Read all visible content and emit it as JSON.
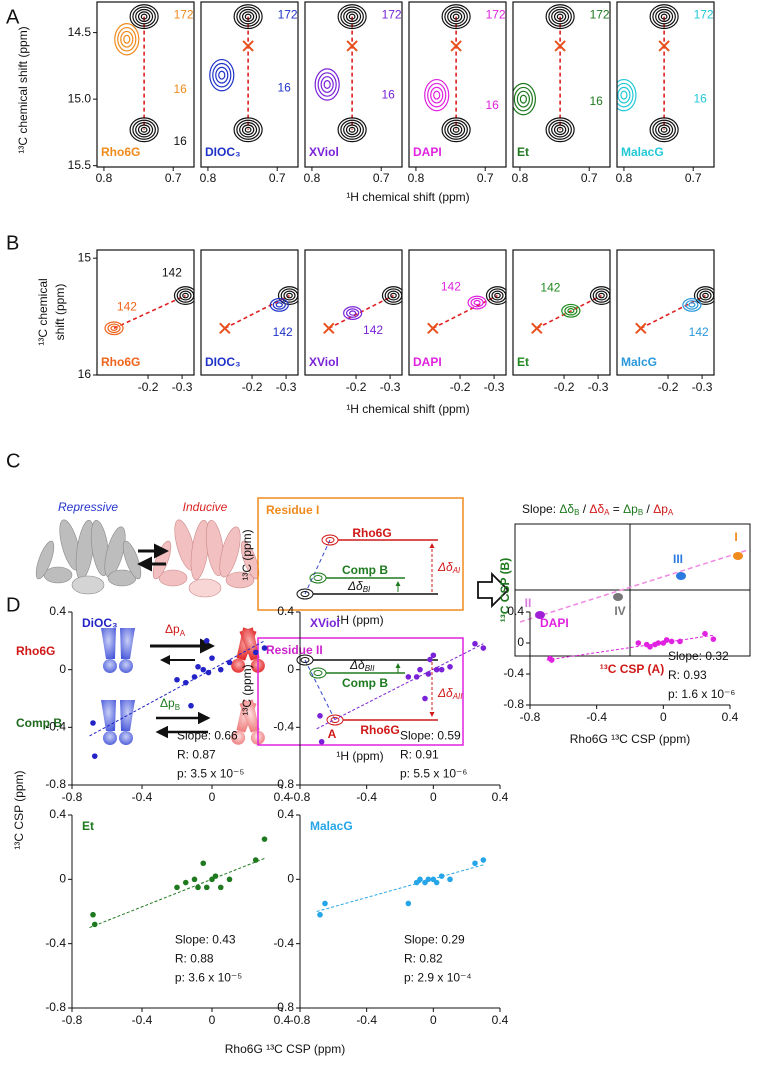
{
  "panel_labels": [
    "A",
    "B",
    "C",
    "D"
  ],
  "panel_a": {
    "xlabel": "¹H chemical shift (ppm)",
    "ylabel": "¹³C chemical shift (ppm)",
    "xlim": [
      0.81,
      0.67
    ],
    "ylim": [
      14.27,
      15.51
    ],
    "xticks": [
      0.8,
      0.7
    ],
    "yticks": [
      14.5,
      {
        "value": 15,
        "label": "15.0"
      },
      15.5
    ],
    "reference_peaks": [
      {
        "x": 0.742,
        "y": 14.38
      },
      {
        "x": 0.742,
        "y": 15.23
      }
    ],
    "reference_label": {
      "text": "16",
      "x": 0.69,
      "y": 15.32
    },
    "subplots": [
      {
        "name": "Rho6G",
        "color": "#f08a1c",
        "peak": {
          "x": 0.767,
          "y": 14.55
        },
        "labels": [
          {
            "text": "172",
            "x": 0.685,
            "y": 14.37
          },
          {
            "text": "16",
            "x": 0.69,
            "y": 14.93
          }
        ]
      },
      {
        "name": "DIOC₃",
        "color": "#1f32c8",
        "cross": {
          "x": 0.742,
          "y": 14.6
        },
        "peak": {
          "x": 0.78,
          "y": 14.82
        },
        "labels": [
          {
            "text": "172",
            "x": 0.685,
            "y": 14.37
          },
          {
            "text": "16",
            "x": 0.69,
            "y": 14.92
          }
        ]
      },
      {
        "name": "XViol",
        "color": "#7a22d8",
        "cross": {
          "x": 0.742,
          "y": 14.6
        },
        "peak": {
          "x": 0.778,
          "y": 14.89
        },
        "labels": [
          {
            "text": "172",
            "x": 0.685,
            "y": 14.37
          },
          {
            "text": "16",
            "x": 0.69,
            "y": 14.97
          }
        ]
      },
      {
        "name": "DAPI",
        "color": "#e022e0",
        "cross": {
          "x": 0.742,
          "y": 14.6
        },
        "peak": {
          "x": 0.77,
          "y": 14.97
        },
        "labels": [
          {
            "text": "172",
            "x": 0.685,
            "y": 14.37
          },
          {
            "text": "16",
            "x": 0.69,
            "y": 15.05
          }
        ]
      },
      {
        "name": "Et",
        "color": "#1f7a1f",
        "cross": {
          "x": 0.742,
          "y": 14.6
        },
        "peak": {
          "x": 0.795,
          "y": 15.0
        },
        "labels": [
          {
            "text": "172",
            "x": 0.685,
            "y": 14.37
          },
          {
            "text": "16",
            "x": 0.69,
            "y": 15.02
          }
        ]
      },
      {
        "name": "MalacG",
        "color": "#22c8d8",
        "cross": {
          "x": 0.742,
          "y": 14.6
        },
        "peak": {
          "x": 0.8,
          "y": 14.97
        },
        "labels": [
          {
            "text": "172",
            "x": 0.685,
            "y": 14.37
          },
          {
            "text": "16",
            "x": 0.69,
            "y": 15.0
          }
        ]
      }
    ]
  },
  "panel_b": {
    "xlabel": "¹H chemical shift (ppm)",
    "ylabel": [
      "¹³C chemical",
      "shift (ppm)"
    ],
    "xlim": [
      -0.05,
      -0.335
    ],
    "ylim": [
      14.93,
      16.0
    ],
    "xticks": [
      -0.2,
      -0.3
    ],
    "yticks": [
      15,
      16
    ],
    "reference_peak": {
      "x": -0.31,
      "y": 15.32
    },
    "reference_label": {
      "text": "142",
      "x": -0.27,
      "y": 15.13
    },
    "subplots": [
      {
        "name": "Rho6G",
        "color": "#f0641c",
        "peak": {
          "x": -0.1,
          "y": 15.6
        },
        "label": {
          "text": "142",
          "x": -0.138,
          "y": 15.42
        }
      },
      {
        "name": "DIOC₃",
        "color": "#1f32c8",
        "cross": {
          "x": -0.12,
          "y": 15.6
        },
        "peak": {
          "x": -0.28,
          "y": 15.4
        },
        "label": {
          "text": "142",
          "x": -0.29,
          "y": 15.64
        }
      },
      {
        "name": "XViol",
        "color": "#7a22d8",
        "cross": {
          "x": -0.12,
          "y": 15.6
        },
        "peak": {
          "x": -0.19,
          "y": 15.47
        },
        "label": {
          "text": "142",
          "x": -0.25,
          "y": 15.62
        }
      },
      {
        "name": "DAPI",
        "color": "#e022e0",
        "cross": {
          "x": -0.12,
          "y": 15.6
        },
        "peak": {
          "x": -0.25,
          "y": 15.38
        },
        "label": {
          "text": "142",
          "x": -0.173,
          "y": 15.25
        }
      },
      {
        "name": "Et",
        "color": "#1f8a1f",
        "cross": {
          "x": -0.12,
          "y": 15.6
        },
        "peak": {
          "x": -0.22,
          "y": 15.45
        },
        "label": {
          "text": "142",
          "x": -0.16,
          "y": 15.26
        }
      },
      {
        "name": "MalcG",
        "color": "#2a98dc",
        "cross": {
          "x": -0.12,
          "y": 15.6
        },
        "peak": {
          "x": -0.27,
          "y": 15.4
        },
        "label": {
          "text": "142",
          "x": -0.29,
          "y": 15.64
        }
      }
    ]
  },
  "panel_c": {
    "repressive": "Repressive",
    "inducive": "Inducive",
    "row_labels": [
      "Rho6G",
      "Comp B"
    ],
    "dp_a": {
      "base": "Δp",
      "sub": "A"
    },
    "dp_b": {
      "base": "Δp",
      "sub": "B"
    },
    "residue_1": {
      "title": "Residue I",
      "rho6g": "Rho6G",
      "compb": "Comp B",
      "dd_b": {
        "base": "Δδ",
        "sub": "BI"
      },
      "dd_a": {
        "base": "Δδ",
        "sub": "AI"
      },
      "ylabel": "¹³C (ppm)",
      "xlabel": "¹H (ppm)"
    },
    "residue_2": {
      "title": "Residue II",
      "rho6g": "Rho6G",
      "compb": "Comp B",
      "a": "A",
      "dd_b": {
        "base": "Δδ",
        "sub": "BII"
      },
      "dd_a": {
        "base": "Δδ",
        "sub": "AII"
      },
      "ylabel": "¹³C (ppm)",
      "xlabel": "¹H (ppm)"
    },
    "scatter": {
      "slope": [
        "Slope: ",
        "Δδ",
        "B",
        " / ",
        "Δδ",
        "A",
        " = ",
        "Δp",
        "B",
        " / ",
        "Δp",
        "A"
      ],
      "ylabel": "¹³C CSP (B)",
      "xlabel": "¹³C CSP (A)",
      "points": [
        "I",
        "II",
        "III",
        "IV"
      ]
    }
  },
  "panel_d": {
    "ylabel": "¹³C CSP (ppm)",
    "xlabel": "Rho6G ¹³C CSP (ppm)",
    "xlim": [
      -0.8,
      0.4
    ],
    "ylim": [
      -0.8,
      0.4
    ],
    "xticks": [
      -0.8,
      -0.4,
      0,
      0.4
    ],
    "yticks": [
      -0.8,
      -0.4,
      0,
      0.4
    ],
    "plots": [
      {
        "name": "DiOC₃",
        "color": "#2323c8",
        "x": [
          -0.68,
          -0.67,
          -0.2,
          -0.15,
          -0.1,
          -0.12,
          -0.05,
          -0.03,
          -0.02,
          0.0,
          0.05,
          0.1,
          0.25,
          0.3,
          -0.08
        ],
        "y": [
          -0.37,
          -0.6,
          -0.07,
          -0.09,
          -0.05,
          -0.25,
          0.0,
          0.2,
          -0.02,
          0.08,
          0.0,
          0.05,
          0.12,
          0.15,
          0.02
        ],
        "fit_x": [
          -0.7,
          0.3
        ],
        "fit_y": [
          -0.46,
          0.2
        ],
        "stats": [
          "Slope: 0.66",
          "R: 0.87",
          "p: 3.5 x 10⁻⁵"
        ]
      },
      {
        "name": "XViol",
        "color": "#7a22d8",
        "x": [
          -0.68,
          -0.67,
          -0.15,
          -0.1,
          -0.08,
          -0.05,
          -0.03,
          0.0,
          0.02,
          0.05,
          0.1,
          0.25,
          0.3,
          -0.02
        ],
        "y": [
          -0.32,
          -0.5,
          -0.05,
          -0.05,
          0.0,
          -0.2,
          -0.03,
          0.1,
          0.0,
          0.0,
          0.02,
          0.18,
          0.15,
          0.07
        ],
        "fit_x": [
          -0.7,
          0.3
        ],
        "fit_y": [
          -0.41,
          0.18
        ],
        "stats": [
          "Slope: 0.59",
          "R: 0.91",
          "p: 5.5 x 10⁻⁶"
        ]
      },
      {
        "name": "DAPI",
        "color": "#e022e0",
        "x": [
          -0.68,
          -0.67,
          -0.15,
          -0.1,
          -0.08,
          -0.05,
          -0.03,
          0.0,
          0.05,
          0.1,
          0.25,
          0.3,
          0.02
        ],
        "y": [
          -0.2,
          -0.22,
          0.0,
          -0.02,
          -0.05,
          -0.02,
          0.0,
          0.0,
          0.02,
          0.02,
          0.12,
          0.05,
          0.04
        ],
        "fit_x": [
          -0.7,
          0.3
        ],
        "fit_y": [
          -0.22,
          0.1
        ],
        "stats": [
          "Slope: 0.32",
          "R: 0.93",
          "p: 1.6 x 10⁻⁶"
        ]
      },
      {
        "name": "Et",
        "color": "#1f7a1f",
        "x": [
          -0.68,
          -0.67,
          -0.2,
          -0.15,
          -0.1,
          -0.08,
          -0.05,
          -0.03,
          0.0,
          0.02,
          0.05,
          0.1,
          0.25,
          0.3
        ],
        "y": [
          -0.22,
          -0.28,
          -0.05,
          -0.02,
          0.0,
          -0.05,
          0.1,
          -0.05,
          0.0,
          0.02,
          -0.05,
          0.0,
          0.12,
          0.25
        ],
        "fit_x": [
          -0.7,
          0.3
        ],
        "fit_y": [
          -0.3,
          0.13
        ],
        "stats": [
          "Slope: 0.43",
          "R: 0.88",
          "p: 3.6 x 10⁻⁵"
        ]
      },
      {
        "name": "MalacG",
        "color": "#26a6e8",
        "x": [
          -0.68,
          -0.65,
          -0.15,
          -0.1,
          -0.08,
          -0.05,
          -0.03,
          0.0,
          0.02,
          0.05,
          0.1,
          0.25,
          0.3
        ],
        "y": [
          -0.22,
          -0.15,
          -0.15,
          -0.02,
          0.0,
          -0.02,
          0.0,
          0.0,
          -0.02,
          0.02,
          0.0,
          0.1,
          0.12
        ],
        "fit_x": [
          -0.7,
          0.3
        ],
        "fit_y": [
          -0.2,
          0.09
        ],
        "stats": [
          "Slope: 0.29",
          "R: 0.82",
          "p: 2.9 x 10⁻⁴"
        ]
      }
    ]
  }
}
